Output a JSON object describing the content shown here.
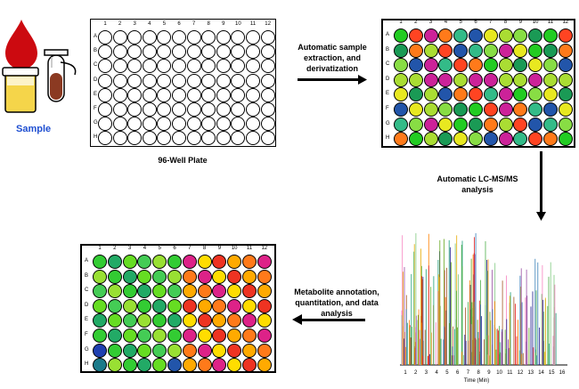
{
  "sample": {
    "label": "Sample"
  },
  "plate1": {
    "caption": "96-Well Plate"
  },
  "steps": {
    "extraction": [
      "Automatic sample",
      "extraction, and",
      "derivatization"
    ],
    "lcms": [
      "Automatic LC-MS/MS",
      "analysis"
    ],
    "annotation": [
      "Metabolite annotation,",
      "quantitation, and data",
      "analysis"
    ]
  },
  "plate_columns": [
    "1",
    "2",
    "3",
    "4",
    "5",
    "6",
    "7",
    "8",
    "9",
    "10",
    "11",
    "12"
  ],
  "plate_rows": [
    "A",
    "B",
    "C",
    "D",
    "E",
    "F",
    "G",
    "H"
  ],
  "chromatogram": {
    "xlabel": "Time (Min)",
    "x_ticks": [
      "1",
      "2",
      "3",
      "4",
      "5",
      "6",
      "7",
      "8",
      "9",
      "10",
      "11",
      "12",
      "13",
      "14",
      "15",
      "16"
    ]
  },
  "colors": {
    "red": "#cc0a10",
    "blue_text": "#1f4fd1",
    "plate2_palette": [
      "#22cc22",
      "#ff7a1a",
      "#e8e820",
      "#1a9a55",
      "#cc2299",
      "#2255aa",
      "#88dd44",
      "#ff4422",
      "#33bb88",
      "#aadd33"
    ],
    "plate3_left": [
      "#33cc33",
      "#66dd22",
      "#99e033",
      "#22aa66",
      "#44cc55"
    ],
    "plate3_right": [
      "#ff7a1a",
      "#ee3322",
      "#dd2288",
      "#ffaa00",
      "#ffdd00"
    ]
  }
}
